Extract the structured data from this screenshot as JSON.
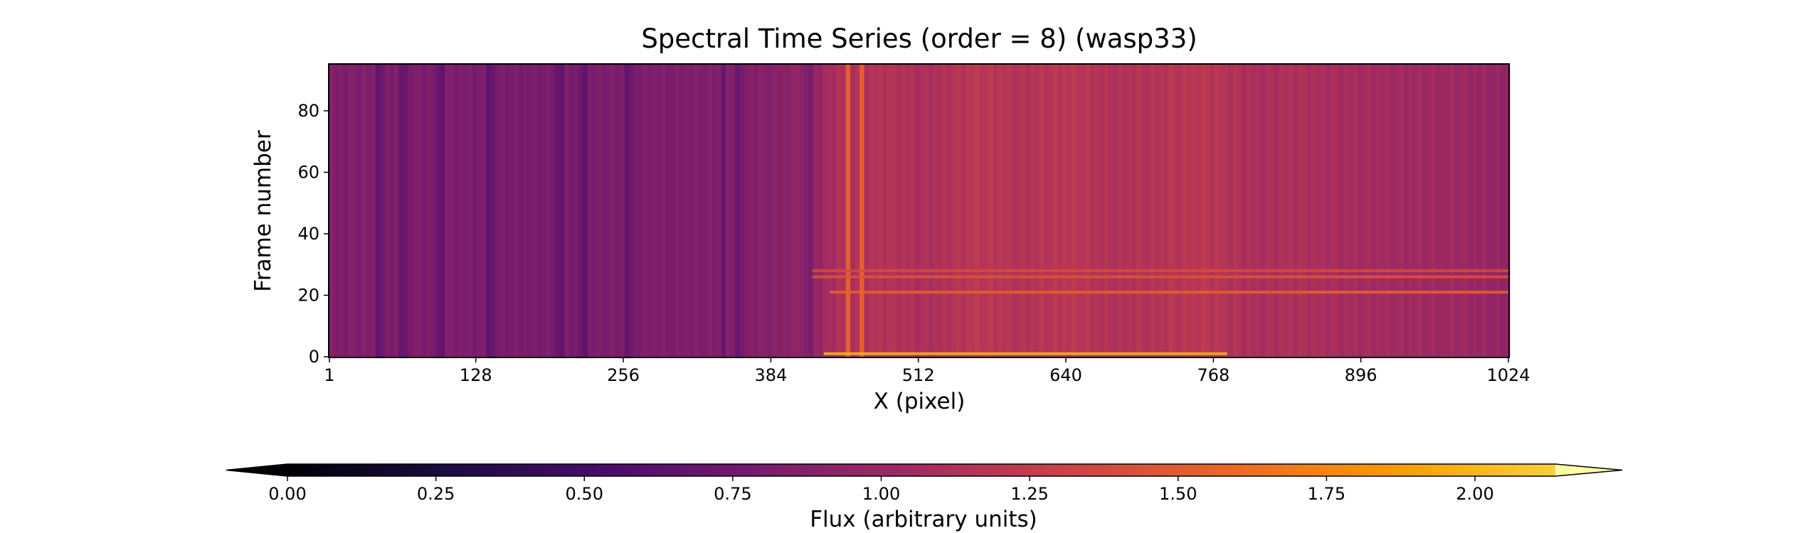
{
  "chart_data": {
    "type": "heatmap",
    "title": "Spectral Time Series (order = 8) (wasp33)",
    "xlabel": "X (pixel)",
    "ylabel": "Frame number",
    "xlim": [
      1,
      1024
    ],
    "ylim": [
      0,
      95
    ],
    "xticks": [
      1,
      128,
      256,
      384,
      512,
      640,
      768,
      896,
      1024
    ],
    "yticks": [
      0,
      20,
      40,
      60,
      80
    ],
    "colormap": "inferno",
    "colorbar": {
      "label": "Flux (arbitrary units)",
      "range": [
        0.0,
        2.0
      ],
      "ticks": [
        "0.00",
        "0.25",
        "0.50",
        "0.75",
        "1.00",
        "1.25",
        "1.50",
        "1.75",
        "2.00"
      ],
      "extend": "both"
    },
    "column_profile": {
      "x": [
        1,
        64,
        128,
        192,
        256,
        320,
        384,
        420,
        440,
        480,
        520,
        560,
        600,
        640,
        680,
        720,
        760,
        800,
        840,
        880,
        920,
        960,
        1000,
        1024
      ],
      "flux": [
        0.8,
        0.78,
        0.77,
        0.76,
        0.78,
        0.79,
        0.83,
        0.9,
        1.05,
        1.08,
        1.04,
        1.12,
        1.08,
        1.12,
        1.06,
        1.09,
        1.12,
        1.03,
        1.05,
        1.0,
        0.98,
        0.96,
        0.93,
        0.88
      ]
    },
    "dark_columns": [
      44,
      62,
      94,
      140,
      198,
      220,
      258,
      341,
      354,
      415
    ],
    "bright_columns": [
      449,
      461
    ],
    "bright_rows": [
      {
        "frame": 1,
        "x_range": [
          430,
          780
        ],
        "flux": 1.85
      },
      {
        "frame": 21,
        "x_range": [
          435,
          1024
        ],
        "flux": 1.45
      },
      {
        "frame": 26,
        "x_range": [
          420,
          1024
        ],
        "flux": 1.35
      },
      {
        "frame": 28,
        "x_range": [
          420,
          1024
        ],
        "flux": 1.3
      }
    ]
  }
}
